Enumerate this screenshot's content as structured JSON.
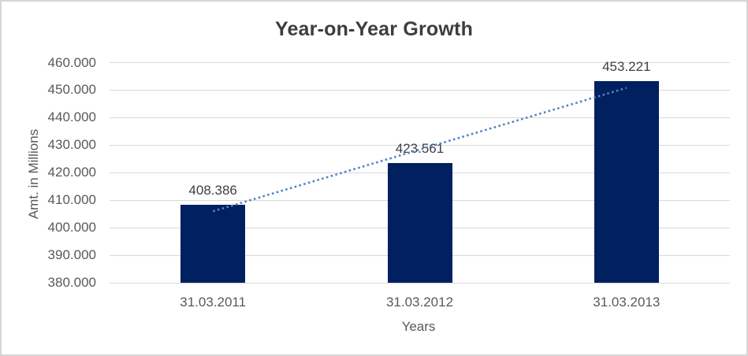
{
  "chart_data": {
    "type": "bar",
    "title": "Year-on-Year Growth",
    "xlabel": "Years",
    "ylabel": "Amt. in Millions",
    "categories": [
      "31.03.2011",
      "31.03.2012",
      "31.03.2013"
    ],
    "values": [
      408.386,
      423.561,
      453.221
    ],
    "value_labels": [
      "408.386",
      "423.561",
      "453.221"
    ],
    "ylim": [
      380,
      460
    ],
    "ytick_step": 10,
    "ytick_labels": [
      "380.000",
      "390.000",
      "400.000",
      "410.000",
      "420.000",
      "430.000",
      "440.000",
      "450.000",
      "460.000"
    ],
    "grid": true,
    "legend": "none",
    "trendline": "linear-dotted",
    "colors": {
      "bar": "#002060",
      "trendline": "#5185c5",
      "gridline": "#d9d9d9",
      "title_text": "#3d3d3d",
      "axis_text": "#595959",
      "label_text": "#404040",
      "frame_border": "#d6d6d6"
    }
  }
}
